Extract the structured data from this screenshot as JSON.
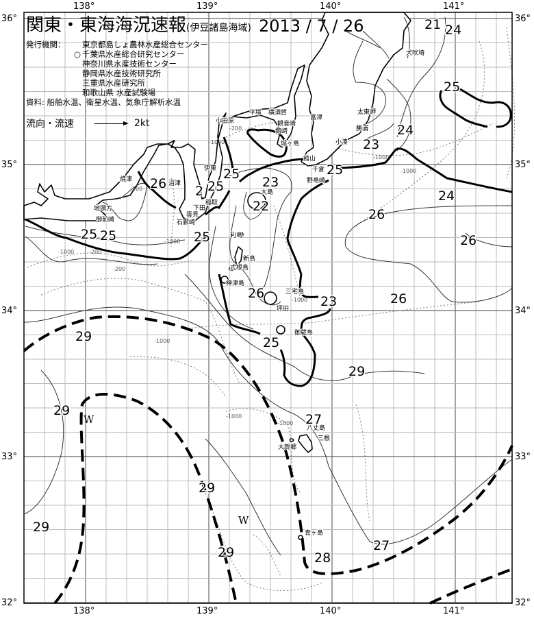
{
  "header": {
    "title": "関東・東海海況速報",
    "subtitle": "(伊豆諸島海域)",
    "date": "2013 / 7 / 26",
    "issuer_label": "発行機関：",
    "issuers": [
      {
        "mark": "",
        "name": "東京都島しょ農林水産総合センター"
      },
      {
        "mark": "○",
        "name": "千葉県水産総合研究センター"
      },
      {
        "mark": "",
        "name": "神奈川県水産技術センター"
      },
      {
        "mark": "",
        "name": "静岡県水産技術研究所"
      },
      {
        "mark": "",
        "name": "三重県水産研究所"
      },
      {
        "mark": "",
        "name": "和歌山県 水産試験場"
      }
    ],
    "sources": "資料: 船舶水温、衛星水温、気象庁解析水温",
    "legend_label": "流向・流速",
    "legend_speed": "2kt"
  },
  "map": {
    "longitude_labels": [
      "138°",
      "139°",
      "140°",
      "141°"
    ],
    "latitude_labels": [
      "36°",
      "35°",
      "34°",
      "33°",
      "32°"
    ],
    "isotherm_labels": [
      "21",
      "24",
      "25",
      "24",
      "23",
      "25",
      "26",
      "25",
      "25",
      "2",
      "23",
      "22",
      "25",
      "23",
      "24",
      "25",
      "26",
      "26",
      "26",
      "25",
      "25",
      "29",
      "26",
      "29",
      "27",
      "29",
      "29",
      "29",
      "27",
      "28"
    ],
    "isobath_labels": [
      "-200",
      "-1000",
      "-200",
      "-1000",
      "-200",
      "-1000",
      "-200",
      "-1000",
      "-1000",
      "-1000",
      "-1000",
      "-1000",
      "-1000"
    ],
    "water_marks": [
      "W",
      "W"
    ],
    "place_names": [
      "犬吠埼",
      "太東岬",
      "勝浦",
      "小湊",
      "富津",
      "館山",
      "千倉",
      "野島崎",
      "平塚",
      "横須賀",
      "観音崎",
      "剱崎",
      "城ヶ島",
      "小田原",
      "伊東",
      "稲取",
      "下田",
      "雲見",
      "石廊崎",
      "沼津",
      "焼津",
      "地頭方",
      "御前崎",
      "大島",
      "利島",
      "新島",
      "式根島",
      "神津島",
      "三宅島",
      "坪田",
      "御蔵島",
      "八丈島",
      "三根",
      "大賀郷",
      "青ヶ島"
    ]
  },
  "colors": {
    "ink": "#000000",
    "grid": "#bbbbbb",
    "background": "#ffffff"
  }
}
